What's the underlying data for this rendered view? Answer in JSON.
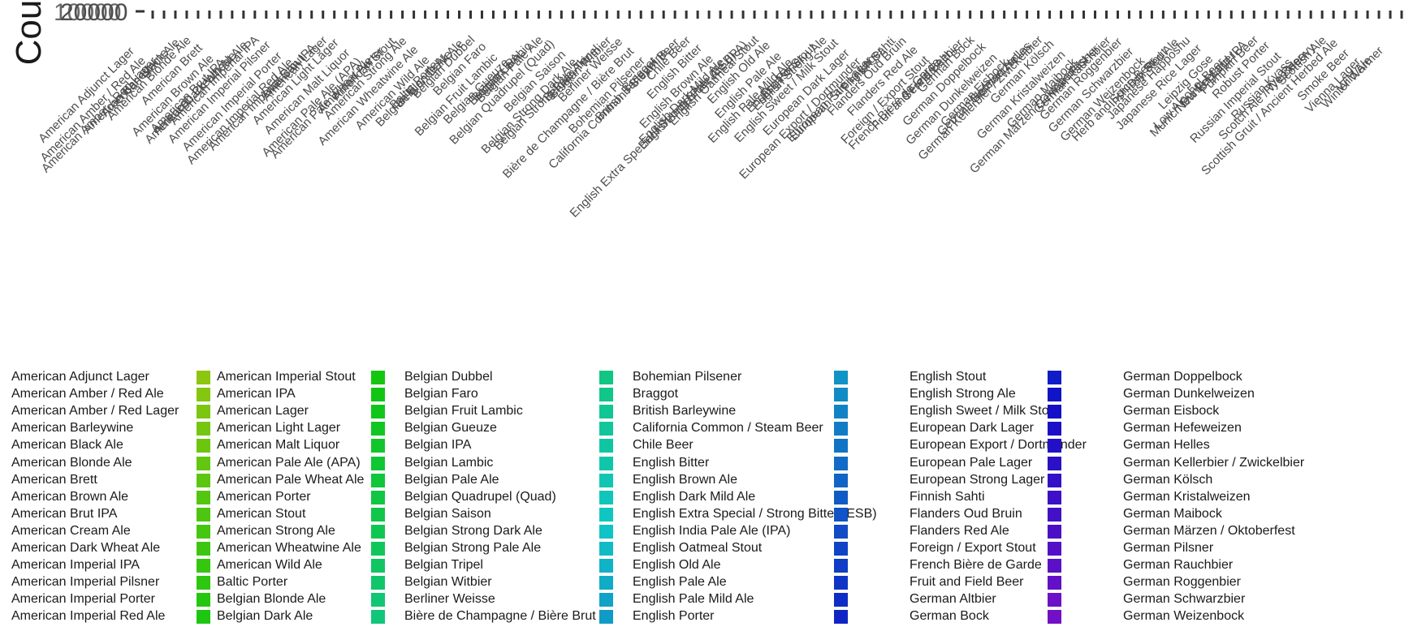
{
  "chart_data": {
    "type": "bar",
    "ylabel": "Cou",
    "yticks": [
      "10000",
      "20000"
    ],
    "legend_position": "bottom",
    "grid": false,
    "categories": [
      "American Adjunct Lager",
      "American Amber / Red Ale",
      "American Amber / Red Lager",
      "American Barleywine",
      "American Black Ale",
      "American Blonde Ale",
      "American Brett",
      "American Brown Ale",
      "American Brut IPA",
      "American Cream Ale",
      "American Dark Wheat Ale",
      "American Imperial IPA",
      "American Imperial Pilsner",
      "American Imperial Porter",
      "American Imperial Red Ale",
      "American Imperial Stout",
      "American IPA",
      "American Lager",
      "American Light Lager",
      "American Malt Liquor",
      "American Pale Ale (APA)",
      "American Pale Wheat Ale",
      "American Porter",
      "American Stout",
      "American Strong Ale",
      "American Wheatwine Ale",
      "American Wild Ale",
      "Baltic Porter",
      "Belgian Blonde Ale",
      "Belgian Dark Ale",
      "Belgian Dubbel",
      "Belgian Faro",
      "Belgian Fruit Lambic",
      "Belgian Gueuze",
      "Belgian IPA",
      "Belgian Lambic",
      "Belgian Pale Ale",
      "Belgian Quadrupel (Quad)",
      "Belgian Saison",
      "Belgian Strong Dark Ale",
      "Belgian Strong Pale Ale",
      "Belgian Tripel",
      "Belgian Witbier",
      "Berliner Weisse",
      "Bière de Champagne / Bière Brut",
      "Bohemian Pilsener",
      "Braggot",
      "British Barleywine",
      "California Common / Steam Beer",
      "Chile Beer",
      "English Bitter",
      "English Brown Ale",
      "English Dark Mild Ale",
      "English Extra Special / Strong Bitter (ESB)",
      "English India Pale Ale (IPA)",
      "English Oatmeal Stout",
      "English Old Ale",
      "English Pale Ale",
      "English Pale Mild Ale",
      "English Porter",
      "English Stout",
      "English Strong Ale",
      "English Sweet / Milk Stout",
      "European Dark Lager",
      "European Export / Dortmunder",
      "European Pale Lager",
      "European Strong Lager",
      "Finnish Sahti",
      "Flanders Oud Bruin",
      "Flanders Red Ale",
      "Foreign / Export Stout",
      "French Bière de Garde",
      "Fruit and Field Beer",
      "German Altbier",
      "German Bock",
      "German Doppelbock",
      "German Dunkelweizen",
      "German Eisbock",
      "German Hefeweizen",
      "German Helles",
      "German Kellerbier / Zwickelbier",
      "German Kölsch",
      "German Kristalweizen",
      "German Maibock",
      "German Märzen / Oktoberfest",
      "German Pilsner",
      "German Rauchbier",
      "German Roggenbier",
      "German Schwarzbier",
      "German Weizenbock",
      "Herb and Spice Beer",
      "Irish Dry Stout",
      "Irish Red Ale",
      "Japanese Happoshu",
      "Japanese Rice Lager",
      "Leipzig Gose",
      "Low Alcohol Beer",
      "Munich Dunkel Lager",
      "New England IPA",
      "Pumpkin Beer",
      "Robust Porter",
      "Russian Imperial Stout",
      "Russian Kvass",
      "Rye Beer",
      "Scotch Ale / Wee Heavy",
      "Scottish Ale",
      "Scottish Gruit / Ancient Herbed Ale",
      "Smoke Beer",
      "Vienna Lager",
      "Wild Ale",
      "Winter Warmer"
    ],
    "legend_visible_rows": 15,
    "legend_visible_columns": 6
  },
  "colors": {
    "background": "#ffffff",
    "text": "#1a1a1a",
    "tick_label": "#4d4d4d",
    "tick_mark": "#333333"
  }
}
